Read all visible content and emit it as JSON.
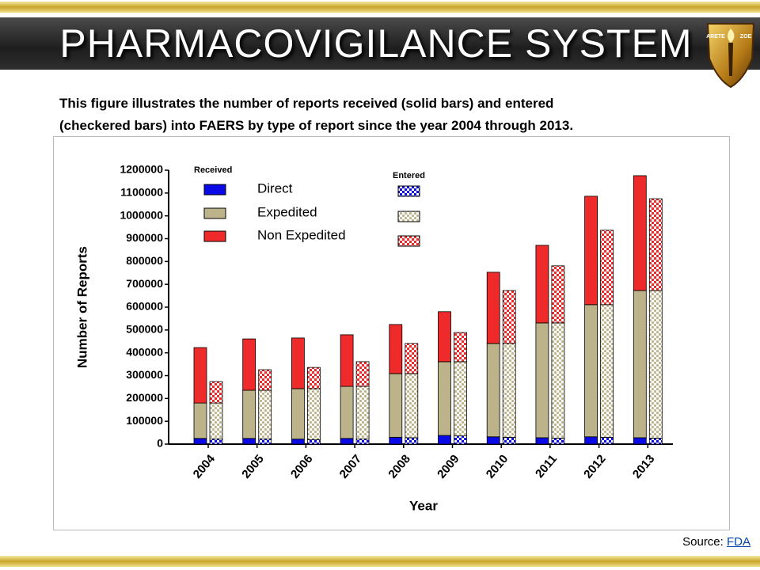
{
  "header": {
    "title": "PHARMACOVIGILANCE SYSTEM",
    "logo_left": "ARETE",
    "logo_right": "ZOE"
  },
  "description": [
    "This figure illustrates the number of reports received (solid bars) and entered",
    "(checkered bars) into FAERS by type of report since the year 2004 through 2013."
  ],
  "chart_data": {
    "type": "bar",
    "stacked": true,
    "xlabel": "Year",
    "ylabel": "Number of Reports",
    "legend_received": "Received",
    "legend_entered": "Entered",
    "categories": [
      "2004",
      "2005",
      "2006",
      "2007",
      "2008",
      "2009",
      "2010",
      "2011",
      "2012",
      "2013"
    ],
    "series": [
      {
        "name": "Direct",
        "color": "#0a0ae6",
        "received": [
          25000,
          25000,
          22000,
          25000,
          30000,
          38000,
          32000,
          28000,
          32000,
          28000
        ],
        "entered": [
          22000,
          22000,
          20000,
          22000,
          28000,
          36000,
          30000,
          26000,
          30000,
          26000
        ]
      },
      {
        "name": "Expedited",
        "color": "#bcb38a",
        "received": [
          155000,
          211000,
          221000,
          228000,
          279000,
          323000,
          409000,
          503000,
          579000,
          645000
        ],
        "entered": [
          158000,
          214000,
          223000,
          231000,
          281000,
          325000,
          411000,
          505000,
          581000,
          647000
        ]
      },
      {
        "name": "Non Expedited",
        "color": "#ee2a2a",
        "received": [
          243000,
          225000,
          222000,
          226000,
          215000,
          219000,
          312000,
          340000,
          475000,
          503000
        ],
        "entered": [
          94000,
          90000,
          93000,
          108000,
          132000,
          128000,
          232000,
          250000,
          326000,
          402000
        ]
      }
    ],
    "ylim": [
      0,
      1200000
    ],
    "yticks": [
      0,
      100000,
      200000,
      300000,
      400000,
      500000,
      600000,
      700000,
      800000,
      900000,
      1000000,
      1100000,
      1200000
    ]
  },
  "source": {
    "label": "Source:",
    "link": "FDA"
  }
}
